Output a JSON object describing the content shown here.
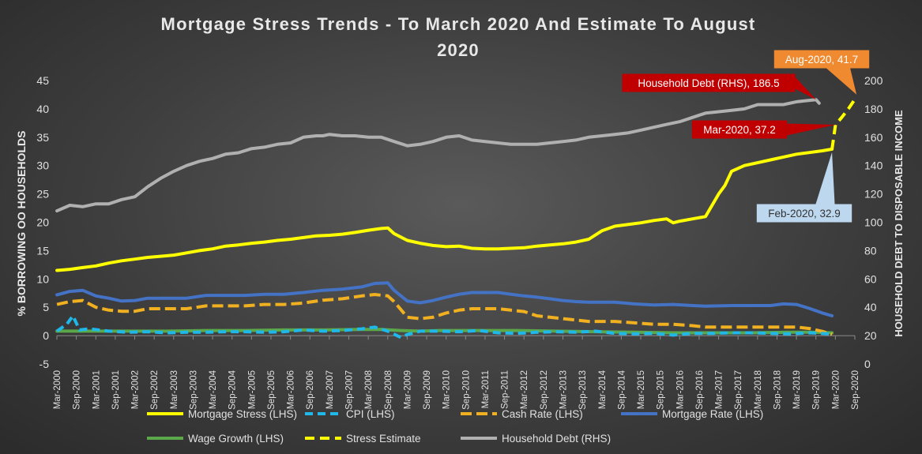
{
  "chart_data": {
    "type": "line",
    "title": "Mortgage Stress Trends - To March 2020 And Estimate To August 2020",
    "title_lines": [
      "Mortgage Stress Trends - To March 2020 And Estimate To August",
      "2020"
    ],
    "ylabel_left": "% BORROWING OO HOUSEHOLDS",
    "ylabel_right": "HOUSEHOLD DEBT TO DISPOSABLE INCOME",
    "ylim_left": [
      -5,
      45
    ],
    "yticks_left": [
      -5,
      0,
      5,
      10,
      15,
      20,
      25,
      30,
      35,
      40,
      45
    ],
    "ylim_right": [
      0,
      200
    ],
    "yticks_right": [
      0,
      20,
      40,
      60,
      80,
      100,
      120,
      140,
      160,
      180,
      200
    ],
    "xlim": [
      2000.167,
      2020.667
    ],
    "xtick_labels": [
      "Mar-2000",
      "Sep-2000",
      "Mar-2001",
      "Sep-2001",
      "Mar-2002",
      "Sep-2002",
      "Mar-2003",
      "Sep-2003",
      "Mar-2004",
      "Sep-2004",
      "Mar-2005",
      "Sep-2005",
      "Mar-2006",
      "Sep-2006",
      "Mar-2007",
      "Sep-2007",
      "Mar-2008",
      "Sep-2008",
      "Mar-2009",
      "Sep-2009",
      "Mar-2010",
      "Sep-2010",
      "Mar-2011",
      "Sep-2011",
      "Mar-2012",
      "Sep-2012",
      "Mar-2013",
      "Sep-2013",
      "Mar-2014",
      "Sep-2014",
      "Mar-2015",
      "Sep-2015",
      "Mar-2016",
      "Sep-2016",
      "Mar-2017",
      "Sep-2017",
      "Mar-2018",
      "Sep-2018",
      "Mar-2019",
      "Sep-2019",
      "Mar-2020",
      "Sep-2020"
    ],
    "series": [
      {
        "name": "Mortgage Stress (LHS)",
        "axis": "left",
        "color": "#ffff00",
        "dash": "solid",
        "x": [
          2000.17,
          2000.5,
          2000.83,
          2001.17,
          2001.5,
          2001.83,
          2002.17,
          2002.5,
          2002.83,
          2003.17,
          2003.5,
          2003.83,
          2004.17,
          2004.5,
          2004.83,
          2005.17,
          2005.5,
          2005.83,
          2006.17,
          2006.5,
          2006.83,
          2007.17,
          2007.5,
          2007.83,
          2008.17,
          2008.5,
          2008.67,
          2008.83,
          2009.17,
          2009.5,
          2009.83,
          2010.17,
          2010.5,
          2010.83,
          2011.17,
          2011.5,
          2011.83,
          2012.17,
          2012.5,
          2012.83,
          2013.17,
          2013.5,
          2013.83,
          2014.17,
          2014.5,
          2014.83,
          2015.17,
          2015.5,
          2015.83,
          2016.0,
          2016.17,
          2016.5,
          2016.83,
          2017.0,
          2017.17,
          2017.33,
          2017.5,
          2017.83,
          2018.17,
          2018.5,
          2018.83,
          2019.17,
          2019.5,
          2019.83,
          2020.08
        ],
        "values": [
          11.5,
          11.7,
          12.0,
          12.3,
          12.8,
          13.2,
          13.5,
          13.8,
          14.0,
          14.2,
          14.6,
          15.0,
          15.3,
          15.8,
          16.0,
          16.3,
          16.5,
          16.8,
          17.0,
          17.3,
          17.6,
          17.7,
          17.9,
          18.2,
          18.6,
          18.9,
          19.0,
          18.0,
          16.8,
          16.3,
          15.9,
          15.7,
          15.8,
          15.4,
          15.3,
          15.3,
          15.4,
          15.5,
          15.8,
          16.0,
          16.2,
          16.5,
          17.0,
          18.5,
          19.3,
          19.6,
          19.9,
          20.3,
          20.6,
          19.9,
          20.2,
          20.6,
          21.0,
          23.0,
          25.0,
          26.5,
          29.0,
          30.0,
          30.5,
          31.0,
          31.5,
          32.0,
          32.3,
          32.6,
          32.9
        ]
      },
      {
        "name": "CPI (LHS)",
        "axis": "left",
        "color": "#1fb8e8",
        "dash": "10,6",
        "x": [
          2000.17,
          2000.42,
          2000.58,
          2000.75,
          2001.0,
          2001.5,
          2002.0,
          2002.5,
          2003.0,
          2003.5,
          2004.0,
          2004.5,
          2005.0,
          2005.5,
          2006.0,
          2006.5,
          2007.0,
          2007.5,
          2008.0,
          2008.33,
          2008.67,
          2009.0,
          2009.17,
          2009.5,
          2010.0,
          2010.5,
          2011.0,
          2011.5,
          2012.0,
          2012.5,
          2013.0,
          2013.5,
          2014.0,
          2014.5,
          2015.0,
          2015.5,
          2016.0,
          2016.5,
          2017.0,
          2017.5,
          2018.0,
          2018.5,
          2019.0,
          2019.5,
          2020.08
        ],
        "values": [
          0.8,
          2.0,
          3.5,
          1.0,
          1.2,
          0.8,
          0.6,
          0.7,
          0.5,
          0.6,
          0.6,
          0.7,
          0.7,
          0.6,
          0.7,
          1.0,
          0.8,
          0.9,
          1.2,
          1.5,
          0.8,
          -0.3,
          0.2,
          0.8,
          0.8,
          0.7,
          0.9,
          0.5,
          0.4,
          0.6,
          0.7,
          0.6,
          0.8,
          0.4,
          0.3,
          0.4,
          0.1,
          0.4,
          0.4,
          0.5,
          0.5,
          0.4,
          0.3,
          0.5,
          0.3
        ]
      },
      {
        "name": "Cash Rate (LHS)",
        "axis": "left",
        "color": "#f0b020",
        "dash": "14,6",
        "x": [
          2000.17,
          2000.5,
          2000.83,
          2001.17,
          2001.5,
          2001.83,
          2002.17,
          2002.5,
          2003.0,
          2003.5,
          2004.0,
          2004.5,
          2005.0,
          2005.5,
          2006.0,
          2006.5,
          2007.0,
          2007.5,
          2008.0,
          2008.33,
          2008.67,
          2008.83,
          2009.17,
          2009.5,
          2009.83,
          2010.17,
          2010.5,
          2010.83,
          2011.17,
          2011.5,
          2011.83,
          2012.17,
          2012.5,
          2012.83,
          2013.17,
          2013.5,
          2013.83,
          2014.5,
          2015.0,
          2015.5,
          2016.0,
          2016.5,
          2016.83,
          2017.5,
          2018.5,
          2019.17,
          2019.5,
          2019.83,
          2020.08
        ],
        "values": [
          5.5,
          6.0,
          6.2,
          5.0,
          4.5,
          4.3,
          4.3,
          4.75,
          4.75,
          4.75,
          5.25,
          5.25,
          5.25,
          5.5,
          5.5,
          5.75,
          6.25,
          6.5,
          7.0,
          7.25,
          7.0,
          6.0,
          3.25,
          3.0,
          3.25,
          4.0,
          4.5,
          4.75,
          4.75,
          4.75,
          4.5,
          4.25,
          3.5,
          3.25,
          3.0,
          2.75,
          2.5,
          2.5,
          2.25,
          2.0,
          2.0,
          1.75,
          1.5,
          1.5,
          1.5,
          1.5,
          1.25,
          0.75,
          0.25
        ]
      },
      {
        "name": "Mortgage Rate (LHS)",
        "axis": "left",
        "color": "#4472c4",
        "dash": "solid",
        "x": [
          2000.17,
          2000.5,
          2000.83,
          2001.17,
          2001.5,
          2001.83,
          2002.17,
          2002.5,
          2003.0,
          2003.5,
          2004.0,
          2004.5,
          2005.0,
          2005.5,
          2006.0,
          2006.5,
          2007.0,
          2007.5,
          2008.0,
          2008.33,
          2008.67,
          2008.83,
          2009.17,
          2009.5,
          2009.83,
          2010.17,
          2010.5,
          2010.83,
          2011.17,
          2011.5,
          2011.83,
          2012.17,
          2012.5,
          2012.83,
          2013.17,
          2013.5,
          2013.83,
          2014.5,
          2015.0,
          2015.5,
          2016.0,
          2016.5,
          2016.83,
          2017.5,
          2018.0,
          2018.5,
          2018.83,
          2019.17,
          2019.5,
          2019.83,
          2020.08
        ],
        "values": [
          7.2,
          7.8,
          8.0,
          7.0,
          6.6,
          6.1,
          6.2,
          6.6,
          6.6,
          6.6,
          7.1,
          7.1,
          7.1,
          7.3,
          7.3,
          7.6,
          8.0,
          8.2,
          8.6,
          9.2,
          9.3,
          8.0,
          6.1,
          5.8,
          6.2,
          6.8,
          7.3,
          7.6,
          7.6,
          7.6,
          7.3,
          7.0,
          6.8,
          6.5,
          6.2,
          6.0,
          5.9,
          5.9,
          5.6,
          5.4,
          5.5,
          5.3,
          5.2,
          5.3,
          5.3,
          5.3,
          5.6,
          5.5,
          4.8,
          4.0,
          3.5
        ]
      },
      {
        "name": "Wage Growth (LHS)",
        "axis": "left",
        "color": "#5aa84a",
        "dash": "solid",
        "x": [
          2000.17,
          2001.0,
          2002.0,
          2003.0,
          2004.0,
          2005.0,
          2006.0,
          2007.0,
          2008.0,
          2008.5,
          2009.0,
          2009.5,
          2010.0,
          2011.0,
          2012.0,
          2013.0,
          2014.0,
          2015.0,
          2016.0,
          2017.0,
          2018.0,
          2019.0,
          2019.5,
          2020.08
        ],
        "values": [
          0.8,
          0.8,
          0.8,
          0.8,
          0.9,
          0.9,
          1.0,
          1.0,
          1.1,
          1.1,
          0.9,
          0.8,
          0.9,
          0.9,
          0.9,
          0.8,
          0.7,
          0.6,
          0.5,
          0.5,
          0.5,
          0.6,
          0.6,
          0.5
        ]
      },
      {
        "name": "Stress Estimate",
        "axis": "left",
        "color": "#ffff00",
        "dash": "12,7",
        "x": [
          2020.08,
          2020.17,
          2020.33,
          2020.5,
          2020.67
        ],
        "values": [
          32.9,
          37.2,
          38.5,
          40.0,
          41.7
        ]
      },
      {
        "name": "Household Debt (RHS)",
        "axis": "right",
        "color": "#b0b0b0",
        "dash": "solid",
        "x": [
          2000.17,
          2000.5,
          2000.83,
          2001.17,
          2001.5,
          2001.83,
          2002.17,
          2002.5,
          2002.83,
          2003.17,
          2003.5,
          2003.83,
          2004.17,
          2004.5,
          2004.83,
          2005.17,
          2005.5,
          2005.83,
          2006.17,
          2006.5,
          2006.83,
          2007.0,
          2007.17,
          2007.5,
          2007.83,
          2008.17,
          2008.5,
          2008.83,
          2009.17,
          2009.5,
          2009.83,
          2010.17,
          2010.5,
          2010.83,
          2011.17,
          2011.5,
          2011.83,
          2012.17,
          2012.5,
          2012.83,
          2013.17,
          2013.5,
          2013.83,
          2014.17,
          2014.5,
          2014.83,
          2015.17,
          2015.5,
          2015.83,
          2016.17,
          2016.5,
          2016.83,
          2017.17,
          2017.5,
          2017.83,
          2018.17,
          2018.5,
          2018.83,
          2019.17,
          2019.5,
          2019.67,
          2019.75
        ],
        "values": [
          108,
          112,
          111,
          113,
          113,
          116,
          118,
          125,
          131,
          136,
          140,
          143,
          145,
          148,
          149,
          152,
          153,
          155,
          156,
          160,
          161,
          161,
          162,
          161,
          161,
          160,
          160,
          157,
          154,
          155,
          157,
          160,
          161,
          158,
          157,
          156,
          155,
          155,
          155,
          156,
          157,
          158,
          160,
          161,
          162,
          163,
          165,
          167,
          169,
          171,
          174,
          177,
          178,
          179,
          180,
          183,
          183,
          183,
          185,
          186,
          186.5,
          184
        ]
      }
    ],
    "annotations": [
      {
        "text": "Aug-2020, 41.7",
        "series": "Stress Estimate",
        "x": 2020.67,
        "y": 41.7,
        "fill": "#f08a30",
        "text_color": "#ffffff"
      },
      {
        "text": "Household Debt (RHS), 186.5",
        "series": "Household Debt (RHS)",
        "x": 2019.67,
        "y": 186.5,
        "fill": "#c00000",
        "text_color": "#ffffff"
      },
      {
        "text": "Mar-2020, 37.2",
        "series": "Stress Estimate",
        "x": 2020.17,
        "y": 37.2,
        "fill": "#c00000",
        "text_color": "#ffffff"
      },
      {
        "text": "Feb-2020, 32.9",
        "series": "Mortgage Stress (LHS)",
        "x": 2020.08,
        "y": 32.9,
        "fill": "#bdd7ee",
        "text_color": "#333333"
      }
    ],
    "legend_rows": [
      [
        "Mortgage Stress (LHS)",
        "CPI (LHS)",
        "Cash Rate (LHS)",
        "Mortgage Rate (LHS)"
      ],
      [
        "Wage Growth (LHS)",
        "Stress Estimate",
        "Household Debt (RHS)"
      ]
    ],
    "legend_position": "bottom"
  }
}
